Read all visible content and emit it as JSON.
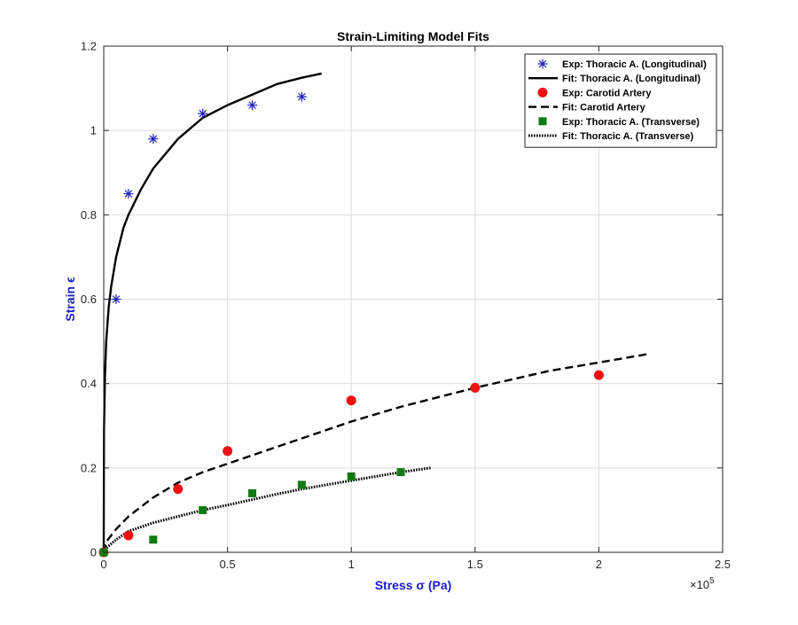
{
  "chart_data": {
    "type": "scatter",
    "title": "Strain-Limiting Model Fits",
    "xlabel": "Stress σ (Pa)",
    "ylabel": "Strain ϵ",
    "xlabel_color": "#1a1acc",
    "ylabel_color": "#1a1acc",
    "x_exponent": "×10",
    "x_exponent_power": "5",
    "xlim": [
      0,
      2.5
    ],
    "ylim": [
      0,
      1.2
    ],
    "xticks": [
      0,
      0.5,
      1,
      1.5,
      2,
      2.5
    ],
    "xtick_labels": [
      "0",
      "0.5",
      "1",
      "1.5",
      "2",
      "2.5"
    ],
    "yticks": [
      0,
      0.2,
      0.4,
      0.6,
      0.8,
      1,
      1.2
    ],
    "ytick_labels": [
      "0",
      "0.2",
      "0.4",
      "0.6",
      "0.8",
      "1",
      "1.2"
    ],
    "grid": true,
    "legend_position": "top-right",
    "series": [
      {
        "name": "Exp: Thoracic A. (Longitudinal)",
        "kind": "scatter",
        "marker": "asterisk",
        "color": "#1f1fbf",
        "x": [
          0,
          0.05,
          0.1,
          0.2,
          0.4,
          0.6,
          0.8
        ],
        "y": [
          0,
          0.6,
          0.85,
          0.98,
          1.04,
          1.06,
          1.08
        ]
      },
      {
        "name": "Fit: Thoracic A. (Longitudinal)",
        "kind": "line",
        "dash": "solid",
        "color": "#000000",
        "x": [
          0,
          0.001,
          0.005,
          0.01,
          0.02,
          0.03,
          0.05,
          0.08,
          0.1,
          0.15,
          0.2,
          0.3,
          0.4,
          0.5,
          0.6,
          0.7,
          0.8,
          0.88
        ],
        "y": [
          0,
          0.29,
          0.42,
          0.5,
          0.58,
          0.63,
          0.7,
          0.77,
          0.8,
          0.86,
          0.91,
          0.98,
          1.03,
          1.06,
          1.085,
          1.11,
          1.125,
          1.135
        ]
      },
      {
        "name": "Exp: Carotid Artery",
        "kind": "scatter",
        "marker": "circle",
        "color": "#ee1111",
        "x": [
          0,
          0.1,
          0.3,
          0.5,
          1.0,
          1.5,
          2.0
        ],
        "y": [
          0,
          0.04,
          0.15,
          0.24,
          0.36,
          0.39,
          0.42
        ]
      },
      {
        "name": "Fit: Carotid Artery",
        "kind": "line",
        "dash": "dashed",
        "color": "#000000",
        "x": [
          0,
          0.01,
          0.05,
          0.1,
          0.2,
          0.3,
          0.4,
          0.5,
          0.6,
          0.8,
          1.0,
          1.2,
          1.5,
          1.8,
          2.0,
          2.2
        ],
        "y": [
          0,
          0.025,
          0.055,
          0.085,
          0.13,
          0.165,
          0.19,
          0.21,
          0.23,
          0.27,
          0.31,
          0.345,
          0.39,
          0.43,
          0.45,
          0.47
        ]
      },
      {
        "name": "Exp: Thoracic A. (Transverse)",
        "kind": "scatter",
        "marker": "square",
        "color": "#127a12",
        "x": [
          0,
          0.2,
          0.4,
          0.6,
          0.8,
          1.0,
          1.2
        ],
        "y": [
          0,
          0.03,
          0.1,
          0.14,
          0.16,
          0.18,
          0.19
        ]
      },
      {
        "name": "Fit: Thoracic A. (Transverse)",
        "kind": "line",
        "dash": "dotted",
        "color": "#000000",
        "x": [
          0,
          0.01,
          0.05,
          0.1,
          0.2,
          0.3,
          0.4,
          0.5,
          0.6,
          0.7,
          0.8,
          0.9,
          1.0,
          1.1,
          1.2,
          1.32
        ],
        "y": [
          0,
          0.01,
          0.03,
          0.05,
          0.07,
          0.085,
          0.1,
          0.112,
          0.125,
          0.138,
          0.15,
          0.16,
          0.17,
          0.18,
          0.19,
          0.2
        ]
      }
    ]
  }
}
